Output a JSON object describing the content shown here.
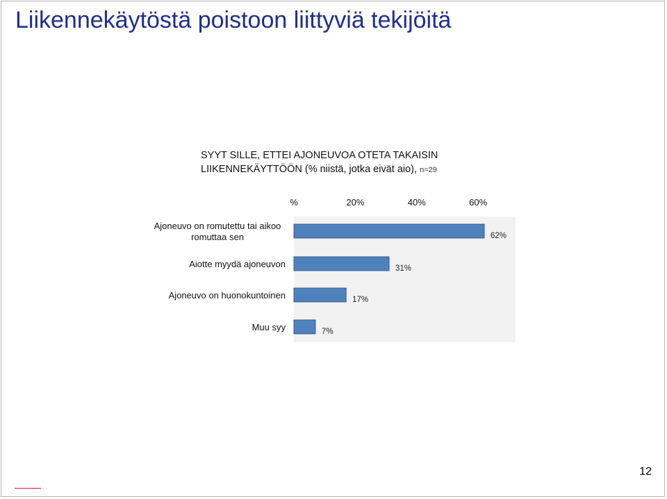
{
  "slide": {
    "title": "Liikennekäytöstä poistoon liittyviä tekijöitä",
    "page_number": "12"
  },
  "chart_data": {
    "type": "bar",
    "orientation": "horizontal",
    "title_line1": "SYYT SILLE, ETTEI AJONEUVOA OTETA TAKAISIN",
    "title_line2": "LIIKENNEKÄYTTÖÖN (% niistä, jotka eivät aio),",
    "title_note": "n=29",
    "categories": [
      [
        "Ajoneuvo on romutettu tai aikoo",
        "romuttaa sen"
      ],
      [
        "Aiotte myydä ajoneuvon"
      ],
      [
        "Ajoneuvo on huonokuntoinen"
      ],
      [
        "Muu syy"
      ]
    ],
    "values": [
      62,
      31,
      17,
      7
    ],
    "value_labels": [
      "62%",
      "31%",
      "17%",
      "7%"
    ],
    "x_ticks": [
      0,
      20,
      40,
      60
    ],
    "x_tick_labels": [
      "%",
      "20%",
      "40%",
      "60%"
    ],
    "xlim": [
      0,
      72
    ],
    "axis_position": "top",
    "bar_color": "#4f81bd",
    "bar_border": "#385d8a",
    "plot_background": "#f2f2f2",
    "grid": false,
    "legend": false
  }
}
